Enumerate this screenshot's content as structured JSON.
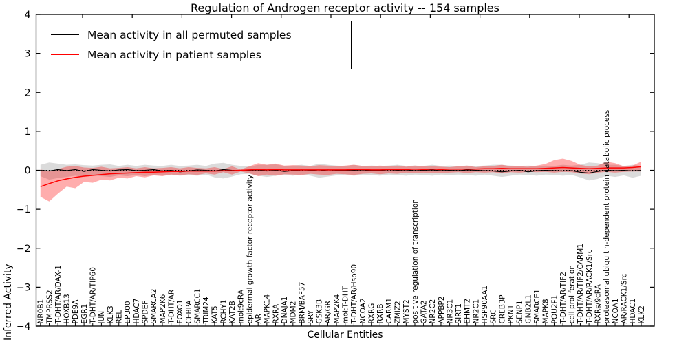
{
  "legend": {
    "items": [
      {
        "label": "Mean activity in all permuted samples",
        "color": "#000000"
      },
      {
        "label": "Mean activity in patient samples",
        "color": "#ff0000"
      }
    ]
  },
  "colors": {
    "patient_line": "#ff0000",
    "permuted_line": "#000000",
    "patient_band": "#ff0000",
    "permuted_band": "#999999",
    "zero_line": "#000000"
  },
  "chart_data": {
    "type": "line",
    "title": "Regulation of Androgen receptor activity -- 154 samples",
    "xlabel": "Cellular Entities",
    "ylabel": "Inferred Activity",
    "ylim": [
      -4,
      4
    ],
    "yticks": [
      -4,
      -3,
      -2,
      -1,
      0,
      1,
      2,
      3,
      4
    ],
    "grid": false,
    "legend_position": "upper left",
    "zero_line": true,
    "categories": [
      "NR0B1",
      "TMPRSS2",
      "T-DHT/AR/DAX-1",
      "HOXB13",
      "PDE9A",
      "EGR1",
      "T-DHT/AR/TIP60",
      "JUN",
      "KLK3",
      "REL",
      "EP300",
      "HDAC7",
      "SPDEF",
      "SMARCA2",
      "MAP2K6",
      "T-DHT/AR",
      "FOXO1",
      "CEBPA",
      "SMARCC1",
      "TRIM24",
      "KAT5",
      "RCHY1",
      "KAT2B",
      "mol:9cRA",
      "epidermal growth factor receptor activity",
      "AR",
      "MAPK14",
      "RXRA",
      "DNAJA1",
      "MDM2",
      "BRM/BAF57",
      "SRY",
      "GSK3B",
      "AR/GR",
      "MAP2K4",
      "mol:T-DHT",
      "T-DHT/AR/Hsp90",
      "NCOA2",
      "RXRG",
      "RXRB",
      "CARM1",
      "ZMIZ2",
      "MYST2",
      "positive regulation of transcription",
      "GATA2",
      "NR2C2",
      "APPBP2",
      "NR3C1",
      "SIRT1",
      "EHMT2",
      "NR2C1",
      "HSP90AA1",
      "SRC",
      "CREBBP",
      "PKN1",
      "SENP1",
      "GNB2L1",
      "SMARCE1",
      "MAPK8",
      "POU2F1",
      "T-DHT/AR/TIF2",
      "cell proliferation",
      "T-DHT/AR/TIF2/CARM1",
      "T-DHT/AR/RACK1/Src",
      "RXRs/9cRA",
      "proteasomal ubiquitin-dependent protein catabolic process",
      "NCOA1",
      "AR/RACK1/Src",
      "HDAC1",
      "KLK2"
    ],
    "series": [
      {
        "name": "Mean activity in all permuted samples",
        "values": [
          0.0,
          -0.02,
          0.02,
          -0.01,
          0.02,
          -0.03,
          0.02,
          0.0,
          -0.02,
          0.01,
          0.02,
          -0.01,
          0.0,
          0.02,
          -0.02,
          0.0,
          -0.04,
          -0.02,
          0.01,
          0.0,
          -0.02,
          0.02,
          0.0,
          -0.01,
          0.0,
          0.01,
          -0.02,
          0.0,
          -0.03,
          -0.01,
          0.01,
          0.0,
          -0.02,
          0.01,
          0.0,
          -0.01,
          0.0,
          0.01,
          -0.01,
          0.0,
          -0.02,
          0.0,
          0.01,
          -0.01,
          0.0,
          0.01,
          -0.01,
          0.0,
          -0.01,
          0.01,
          0.0,
          -0.01,
          -0.02,
          -0.04,
          -0.02,
          0.0,
          -0.04,
          -0.01,
          0.0,
          -0.01,
          -0.02,
          -0.01,
          -0.05,
          -0.07,
          -0.03,
          0.0,
          -0.01,
          0.0,
          -0.02,
          0.0
        ],
        "band_lower": [
          -0.15,
          -0.24,
          -0.2,
          -0.17,
          -0.14,
          -0.17,
          -0.13,
          -0.15,
          -0.17,
          -0.13,
          -0.15,
          -0.12,
          -0.15,
          -0.12,
          -0.14,
          -0.11,
          -0.14,
          -0.12,
          -0.14,
          -0.11,
          -0.18,
          -0.21,
          -0.16,
          -0.1,
          -0.09,
          -0.14,
          -0.17,
          -0.14,
          -0.12,
          -0.14,
          -0.11,
          -0.14,
          -0.19,
          -0.16,
          -0.13,
          -0.11,
          -0.14,
          -0.11,
          -0.12,
          -0.14,
          -0.11,
          -0.12,
          -0.14,
          -0.11,
          -0.12,
          -0.14,
          -0.11,
          -0.12,
          -0.11,
          -0.12,
          -0.14,
          -0.11,
          -0.14,
          -0.17,
          -0.14,
          -0.11,
          -0.12,
          -0.14,
          -0.11,
          -0.12,
          -0.14,
          -0.12,
          -0.18,
          -0.26,
          -0.22,
          -0.14,
          -0.17,
          -0.13,
          -0.19,
          -0.14
        ],
        "band_upper": [
          0.14,
          0.2,
          0.17,
          0.14,
          0.15,
          0.13,
          0.12,
          0.14,
          0.15,
          0.11,
          0.14,
          0.11,
          0.14,
          0.12,
          0.11,
          0.14,
          0.11,
          0.12,
          0.14,
          0.11,
          0.17,
          0.19,
          0.14,
          0.11,
          0.09,
          0.14,
          0.14,
          0.15,
          0.11,
          0.12,
          0.14,
          0.11,
          0.17,
          0.14,
          0.12,
          0.11,
          0.14,
          0.11,
          0.12,
          0.11,
          0.12,
          0.14,
          0.11,
          0.12,
          0.11,
          0.14,
          0.11,
          0.12,
          0.11,
          0.12,
          0.11,
          0.12,
          0.14,
          0.14,
          0.12,
          0.11,
          0.12,
          0.11,
          0.12,
          0.11,
          0.14,
          0.12,
          0.14,
          0.2,
          0.18,
          0.14,
          0.14,
          0.11,
          0.14,
          0.11
        ]
      },
      {
        "name": "Mean activity in patient samples",
        "values": [
          -0.42,
          -0.34,
          -0.27,
          -0.22,
          -0.18,
          -0.15,
          -0.13,
          -0.11,
          -0.09,
          -0.08,
          -0.07,
          -0.06,
          -0.05,
          -0.05,
          -0.04,
          -0.03,
          -0.03,
          -0.02,
          -0.02,
          -0.02,
          -0.02,
          -0.01,
          -0.01,
          0.0,
          0.01,
          0.02,
          0.01,
          0.02,
          0.01,
          0.01,
          0.01,
          0.01,
          0.01,
          0.01,
          0.01,
          0.01,
          0.02,
          0.02,
          0.01,
          0.01,
          0.02,
          0.02,
          0.02,
          0.03,
          0.02,
          0.03,
          0.02,
          0.03,
          0.03,
          0.03,
          0.03,
          0.04,
          0.04,
          0.05,
          0.04,
          0.04,
          0.04,
          0.04,
          0.05,
          0.06,
          0.07,
          0.06,
          0.05,
          0.04,
          0.05,
          0.06,
          0.06,
          0.06,
          0.07,
          0.09
        ],
        "band_lower": [
          -0.68,
          -0.8,
          -0.6,
          -0.42,
          -0.46,
          -0.3,
          -0.32,
          -0.24,
          -0.26,
          -0.19,
          -0.21,
          -0.15,
          -0.18,
          -0.13,
          -0.15,
          -0.11,
          -0.13,
          -0.1,
          -0.12,
          -0.08,
          -0.11,
          -0.05,
          -0.11,
          -0.03,
          -0.08,
          -0.15,
          -0.11,
          -0.14,
          -0.1,
          -0.11,
          -0.12,
          -0.09,
          -0.11,
          -0.12,
          -0.09,
          -0.1,
          -0.12,
          -0.09,
          -0.08,
          -0.1,
          -0.08,
          -0.09,
          -0.06,
          -0.08,
          -0.06,
          -0.07,
          -0.08,
          -0.06,
          -0.05,
          -0.07,
          -0.05,
          -0.06,
          -0.05,
          -0.08,
          -0.05,
          -0.06,
          -0.04,
          -0.05,
          -0.04,
          -0.06,
          -0.04,
          -0.05,
          -0.08,
          -0.1,
          -0.06,
          -0.04,
          -0.06,
          -0.04,
          -0.03,
          -0.03
        ],
        "band_upper": [
          0.02,
          -0.02,
          0.03,
          0.09,
          0.11,
          0.07,
          0.06,
          0.09,
          0.05,
          0.06,
          0.08,
          0.05,
          0.08,
          0.05,
          0.06,
          0.08,
          0.05,
          0.08,
          0.06,
          0.05,
          0.08,
          0.03,
          0.1,
          0.02,
          0.1,
          0.18,
          0.14,
          0.17,
          0.12,
          0.13,
          0.12,
          0.1,
          0.13,
          0.12,
          0.1,
          0.12,
          0.14,
          0.11,
          0.1,
          0.12,
          0.1,
          0.12,
          0.09,
          0.12,
          0.1,
          0.1,
          0.09,
          0.08,
          0.1,
          0.12,
          0.08,
          0.1,
          0.11,
          0.14,
          0.1,
          0.1,
          0.09,
          0.12,
          0.16,
          0.26,
          0.3,
          0.24,
          0.14,
          0.1,
          0.12,
          0.22,
          0.18,
          0.1,
          0.12,
          0.22
        ]
      }
    ]
  }
}
